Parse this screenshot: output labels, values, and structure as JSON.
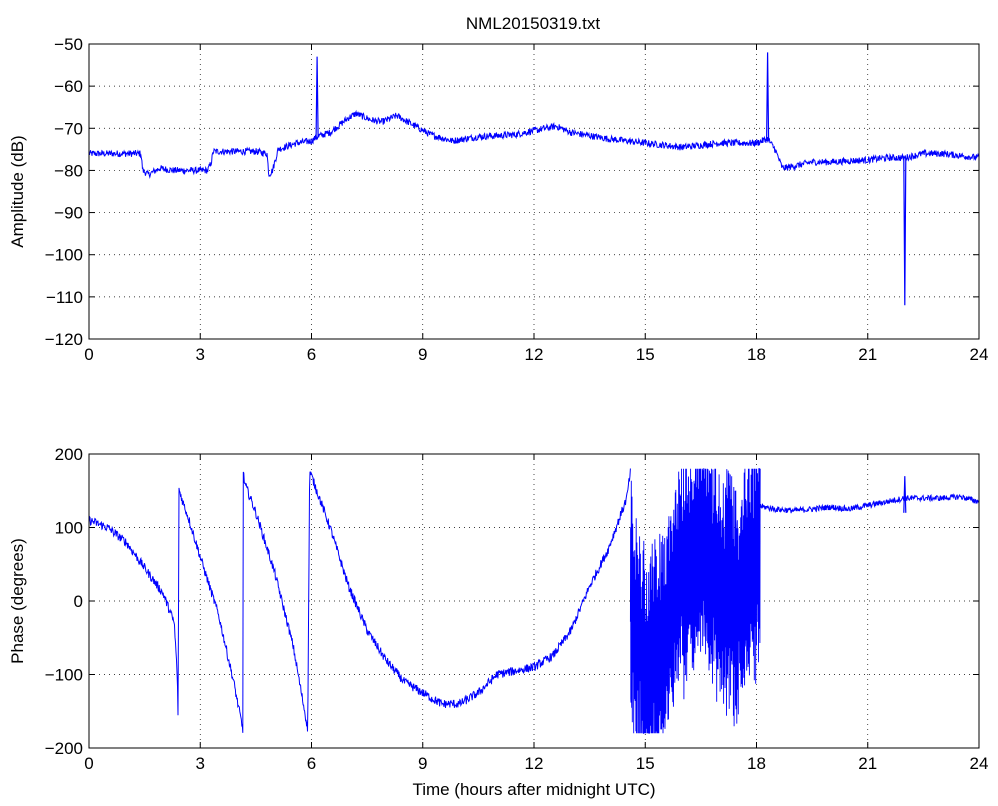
{
  "figure": {
    "title": "NML20150319.txt",
    "background": "#ffffff",
    "line_color": "#0000ff",
    "grid": "dotted"
  },
  "chart_data": [
    {
      "type": "line",
      "ylabel": "Amplitude (dB)",
      "xlabel": "",
      "xlim": [
        0,
        24
      ],
      "ylim": [
        -120,
        -50
      ],
      "xticks": [
        0,
        3,
        6,
        9,
        12,
        15,
        18,
        21,
        24
      ],
      "yticks": [
        -50,
        -60,
        -70,
        -80,
        -90,
        -100,
        -110,
        -120
      ],
      "grid": true,
      "series": [
        {
          "noise": 0.8,
          "x": [
            0,
            0.5,
            1.0,
            1.4,
            1.45,
            1.6,
            1.9,
            2.3,
            2.8,
            3.2,
            3.3,
            3.35,
            3.6,
            4.0,
            4.5,
            4.8,
            4.85,
            4.95,
            5.1,
            5.6,
            6.0,
            6.15,
            6.5,
            7.0,
            7.2,
            7.6,
            7.9,
            8.3,
            8.7,
            9.2,
            9.8,
            10.5,
            11.5,
            12.3,
            12.6,
            13.0,
            14.0,
            15.0,
            16.0,
            17.0,
            18.0,
            18.3,
            18.5,
            18.7,
            19.0,
            19.5,
            20.0,
            21.0,
            21.5,
            22.0,
            22.5,
            23.0,
            24.0
          ],
          "y": [
            -76,
            -76,
            -76,
            -76,
            -80,
            -81,
            -79.5,
            -80,
            -80,
            -80,
            -78,
            -75.5,
            -75.5,
            -75.5,
            -75.5,
            -76,
            -81,
            -80,
            -75,
            -73.5,
            -73,
            -72,
            -71,
            -67.5,
            -66.5,
            -68,
            -68.5,
            -67,
            -69,
            -71.5,
            -73,
            -72,
            -71.5,
            -70,
            -69.5,
            -71,
            -72.5,
            -73.5,
            -74.5,
            -73.5,
            -73.5,
            -72.5,
            -75,
            -79.5,
            -79,
            -78,
            -78,
            -77.5,
            -77,
            -77,
            -76,
            -76,
            -77
          ]
        }
      ],
      "spikes": [
        {
          "x": 6.15,
          "from": -72,
          "to": -53
        },
        {
          "x": 18.3,
          "from": -73,
          "to": -52
        },
        {
          "x": 22.0,
          "from": -77,
          "to": -112
        }
      ]
    },
    {
      "type": "line",
      "ylabel": "Phase (degrees)",
      "xlabel": "Time (hours after midnight UTC)",
      "xlim": [
        0,
        24
      ],
      "ylim": [
        -200,
        200
      ],
      "xticks": [
        0,
        3,
        6,
        9,
        12,
        15,
        18,
        21,
        24
      ],
      "yticks": [
        200,
        100,
        0,
        -100,
        -200
      ],
      "grid": true,
      "series": [
        {
          "noise": 6,
          "x": [
            0,
            0.5,
            1.0,
            1.5,
            2.0,
            2.3,
            2.38,
            2.4,
            2.41,
            2.42,
            2.43,
            2.7,
            3.0,
            3.5,
            3.9,
            4.15,
            4.16,
            4.17,
            4.2,
            4.5,
            5.0,
            5.5,
            5.85,
            5.9,
            5.95,
            6.0,
            6.5,
            7.0,
            7.5,
            8.0,
            8.5,
            9.0,
            9.5,
            10.0,
            10.5,
            11.0,
            11.5,
            12.0,
            12.5,
            13.0,
            13.5,
            14.0,
            14.5,
            14.6
          ],
          "y": [
            110,
            100,
            80,
            45,
            10,
            -30,
            -100,
            -160,
            -100,
            160,
            150,
            110,
            60,
            -20,
            -110,
            -175,
            175,
            170,
            160,
            120,
            40,
            -60,
            -160,
            -175,
            175,
            170,
            100,
            20,
            -40,
            -80,
            -110,
            -125,
            -140,
            -140,
            -125,
            -100,
            -95,
            -90,
            -75,
            -40,
            20,
            70,
            140,
            175
          ]
        },
        {
          "noise": 4,
          "x": [
            18.0,
            18.5,
            19.0,
            19.5,
            20.0,
            20.5,
            21.0,
            21.5,
            22.0,
            22.5,
            23.0,
            23.5,
            24.0
          ],
          "y": [
            130,
            125,
            123,
            125,
            128,
            125,
            130,
            135,
            140,
            140,
            140,
            142,
            135
          ]
        }
      ],
      "wraps": {
        "x_start": 14.6,
        "x_end": 18.1,
        "center": [
          [
            14.6,
            0
          ],
          [
            15.0,
            -100
          ],
          [
            15.5,
            -50
          ],
          [
            16.0,
            40
          ],
          [
            16.5,
            80
          ],
          [
            17.0,
            20
          ],
          [
            17.5,
            0
          ],
          [
            18.0,
            60
          ],
          [
            18.1,
            110
          ]
        ],
        "min": -180,
        "max": 180
      },
      "spikes": [
        {
          "x": 22.0,
          "from": 120,
          "to": 170
        }
      ]
    }
  ]
}
